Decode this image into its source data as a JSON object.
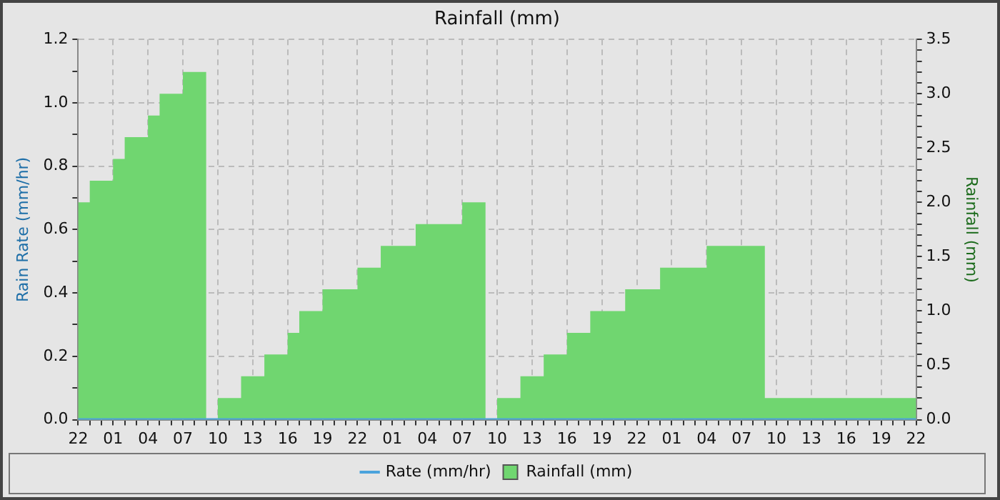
{
  "chart_data": {
    "type": "area",
    "title": "Rainfall (mm)",
    "ylabel": "Rain Rate (mm/hr)",
    "y2label": "Rainfall (mm)",
    "grid": true,
    "legend": "bottom",
    "marker": "none",
    "categories": [
      "22",
      null,
      null,
      "01",
      null,
      null,
      "04",
      null,
      null,
      "07",
      null,
      null,
      "10",
      null,
      null,
      "13",
      null,
      null,
      "16",
      null,
      null,
      "19",
      null,
      null,
      "22",
      null,
      null,
      "01",
      null,
      null,
      "04",
      null,
      null,
      "07",
      null,
      null,
      "10",
      null,
      null,
      "13",
      null,
      null,
      "16",
      null,
      null,
      "19",
      null,
      null,
      "22",
      null,
      null,
      "01",
      null,
      null,
      "04",
      null,
      null,
      "07",
      null,
      null,
      "10",
      null,
      null,
      "13",
      null,
      null,
      "16",
      null,
      null,
      "19",
      null,
      null,
      "22"
    ],
    "ylim": [
      0,
      1.2
    ],
    "yticks": [
      {
        "value": 0,
        "label": "0.0"
      },
      {
        "value": 0.1,
        "label": null
      },
      {
        "value": 0.2,
        "label": "0.2"
      },
      {
        "value": 0.3,
        "label": null
      },
      {
        "value": 0.4,
        "label": "0.4"
      },
      {
        "value": 0.5,
        "label": null
      },
      {
        "value": 0.6,
        "label": "0.6"
      },
      {
        "value": 0.7,
        "label": null
      },
      {
        "value": 0.8,
        "label": "0.8"
      },
      {
        "value": 0.9,
        "label": null
      },
      {
        "value": 1,
        "label": "1.0"
      },
      {
        "value": 1.1,
        "label": null
      },
      {
        "value": 1.2,
        "label": "1.2"
      }
    ],
    "y2lim": [
      0,
      3.5
    ],
    "y2ticks": [
      {
        "value": 0,
        "label": "0.0"
      },
      {
        "value": 0.1,
        "label": null
      },
      {
        "value": 0.2,
        "label": null
      },
      {
        "value": 0.3,
        "label": null
      },
      {
        "value": 0.4,
        "label": null
      },
      {
        "value": 0.5,
        "label": "0.5"
      },
      {
        "value": 0.6,
        "label": null
      },
      {
        "value": 0.7,
        "label": null
      },
      {
        "value": 0.8,
        "label": null
      },
      {
        "value": 0.9,
        "label": null
      },
      {
        "value": 1,
        "label": "1.0"
      },
      {
        "value": 1.1,
        "label": null
      },
      {
        "value": 1.2,
        "label": null
      },
      {
        "value": 1.3,
        "label": null
      },
      {
        "value": 1.4,
        "label": null
      },
      {
        "value": 1.5,
        "label": "1.5"
      },
      {
        "value": 1.6,
        "label": null
      },
      {
        "value": 1.7,
        "label": null
      },
      {
        "value": 1.8,
        "label": null
      },
      {
        "value": 1.9,
        "label": null
      },
      {
        "value": 2,
        "label": "2.0"
      },
      {
        "value": 2.1,
        "label": null
      },
      {
        "value": 2.2,
        "label": null
      },
      {
        "value": 2.3,
        "label": null
      },
      {
        "value": 2.4,
        "label": null
      },
      {
        "value": 2.5,
        "label": "2.5"
      },
      {
        "value": 2.6,
        "label": null
      },
      {
        "value": 2.7,
        "label": null
      },
      {
        "value": 2.8,
        "label": null
      },
      {
        "value": 2.9,
        "label": null
      },
      {
        "value": 3,
        "label": "3.0"
      },
      {
        "value": 3.1,
        "label": null
      },
      {
        "value": 3.2,
        "label": null
      },
      {
        "value": 3.3,
        "label": null
      },
      {
        "value": 3.4,
        "label": null
      },
      {
        "value": 3.5,
        "label": "3.5"
      }
    ],
    "series": [
      {
        "name": "Rate (mm/hr)",
        "type": "line",
        "color": "#4ba3dc",
        "values": [
          0,
          0,
          0,
          0,
          0,
          0,
          0,
          0,
          0,
          0,
          0,
          0,
          0,
          0,
          0,
          0,
          0,
          0,
          0,
          0,
          0,
          0,
          0,
          0,
          0,
          0,
          0,
          0,
          0,
          0,
          0,
          0,
          0,
          0,
          0,
          0,
          0,
          0,
          0,
          0,
          0,
          0,
          0,
          0,
          0,
          0,
          0,
          0,
          0,
          0,
          0,
          0,
          0,
          0,
          0,
          0,
          0,
          0,
          0,
          0,
          0,
          0,
          0,
          0,
          0,
          0,
          0,
          0,
          0,
          0,
          0,
          0,
          0
        ]
      },
      {
        "name": "Rainfall (mm)",
        "axis": "y2",
        "color": "#70d670",
        "values": [
          2.0,
          2.0,
          2.2,
          2.2,
          2.4,
          2.6,
          2.6,
          2.8,
          3.0,
          3.0,
          3.2,
          3.2,
          0,
          0.2,
          0.2,
          0.4,
          0.4,
          0.6,
          0.6,
          0.8,
          1.0,
          1.0,
          1.2,
          1.2,
          1.2,
          1.4,
          1.4,
          1.6,
          1.6,
          1.6,
          1.8,
          1.8,
          1.8,
          1.8,
          2.0,
          2.0,
          0,
          0.2,
          0.2,
          0.4,
          0.4,
          0.6,
          0.6,
          0.8,
          0.8,
          1.0,
          1.0,
          1.0,
          1.2,
          1.2,
          1.2,
          1.4,
          1.4,
          1.4,
          1.4,
          1.6,
          1.6,
          1.6,
          1.6,
          1.6,
          0.2,
          0.2,
          0.2,
          0.2,
          0.2,
          0.2,
          0.2,
          0.2,
          0.2,
          0.2,
          0.2,
          0.2,
          0.2
        ]
      }
    ]
  }
}
